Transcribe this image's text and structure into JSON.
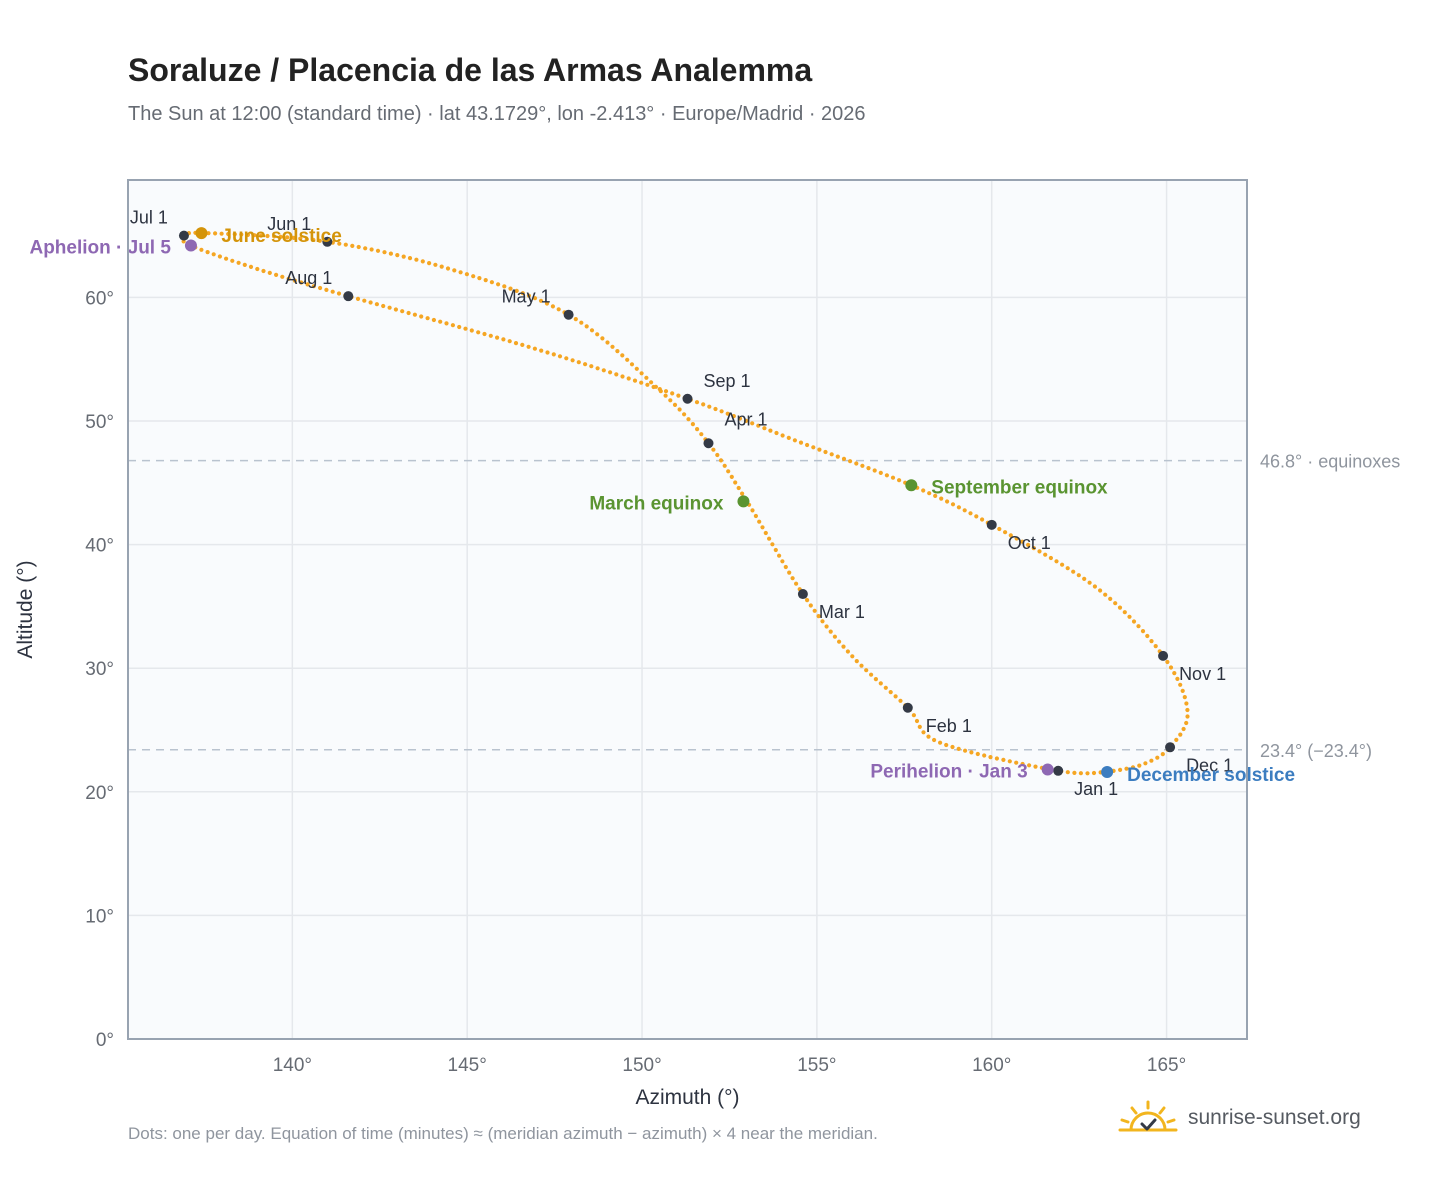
{
  "header": {
    "title": "Soraluze / Placencia de las Armas Analemma",
    "subtitle": "The Sun at 12:00 (standard time) · lat 43.1729°, lon -2.413° · Europe/Madrid · 2026"
  },
  "footer": {
    "note": "Dots: one per day. Equation of time (minutes) ≈ (meridian azimuth − azimuth) × 4 near the meridian.",
    "brand": "sunrise-sunset.org",
    "brand_icon": "sun-icon"
  },
  "colors": {
    "curve": "#f5a623",
    "month_marker": "#343a46",
    "equinox": "#5a9431",
    "june_solstice": "#d4940a",
    "december_solstice": "#3c7dc0",
    "apsis": "#8e68b3",
    "grid": "#e5e8ec",
    "plot_bg": "#f9fbfd",
    "frame": "#98a3b1",
    "ref_line": "#b9c3cf"
  },
  "chart_data": {
    "type": "scatter",
    "xlabel": "Azimuth (°)",
    "ylabel": "Altitude (°)",
    "xlim": [
      135.3,
      167.3
    ],
    "ylim": [
      0,
      69.5
    ],
    "xticks": [
      140,
      145,
      150,
      155,
      160,
      165
    ],
    "yticks": [
      0,
      10,
      20,
      30,
      40,
      50,
      60
    ],
    "xtick_labels": [
      "140°",
      "145°",
      "150°",
      "155°",
      "160°",
      "165°"
    ],
    "ytick_labels": [
      "0°",
      "10°",
      "20°",
      "30°",
      "40°",
      "50°",
      "60°"
    ],
    "grid": true,
    "reference_lines": [
      {
        "y": 46.8,
        "label": "46.8° · equinoxes"
      },
      {
        "y": 23.4,
        "label": "23.4° (−23.4°)"
      }
    ],
    "curve_anchors": [
      {
        "az": 163.3,
        "alt": 21.6
      },
      {
        "az": 161.9,
        "alt": 21.7
      },
      {
        "az": 158.5,
        "alt": 24.0
      },
      {
        "az": 157.6,
        "alt": 26.8
      },
      {
        "az": 156.0,
        "alt": 31.0
      },
      {
        "az": 154.6,
        "alt": 36.0
      },
      {
        "az": 153.0,
        "alt": 43.5
      },
      {
        "az": 151.9,
        "alt": 48.2
      },
      {
        "az": 150.5,
        "alt": 52.5
      },
      {
        "az": 147.9,
        "alt": 58.6
      },
      {
        "az": 144.5,
        "alt": 62.3
      },
      {
        "az": 141.0,
        "alt": 64.5
      },
      {
        "az": 137.6,
        "alt": 65.2
      },
      {
        "az": 136.9,
        "alt": 65.0
      },
      {
        "az": 137.1,
        "alt": 64.2
      },
      {
        "az": 139.0,
        "alt": 62.3
      },
      {
        "az": 141.6,
        "alt": 60.1
      },
      {
        "az": 147.0,
        "alt": 55.8
      },
      {
        "az": 151.3,
        "alt": 51.8
      },
      {
        "az": 154.5,
        "alt": 48.3
      },
      {
        "az": 157.7,
        "alt": 44.8
      },
      {
        "az": 160.0,
        "alt": 41.6
      },
      {
        "az": 163.0,
        "alt": 36.5
      },
      {
        "az": 164.9,
        "alt": 31.0
      },
      {
        "az": 165.6,
        "alt": 26.5
      },
      {
        "az": 165.1,
        "alt": 23.6
      },
      {
        "az": 164.3,
        "alt": 22.2
      },
      {
        "az": 163.3,
        "alt": 21.6
      }
    ],
    "month_markers": [
      {
        "label": "Jan 1",
        "az": 161.9,
        "alt": 21.7
      },
      {
        "label": "Feb 1",
        "az": 157.6,
        "alt": 26.8
      },
      {
        "label": "Mar 1",
        "az": 154.6,
        "alt": 36.0
      },
      {
        "label": "Apr 1",
        "az": 151.9,
        "alt": 48.2
      },
      {
        "label": "May 1",
        "az": 147.9,
        "alt": 58.6
      },
      {
        "label": "Jun 1",
        "az": 141.0,
        "alt": 64.5
      },
      {
        "label": "Jul 1",
        "az": 136.9,
        "alt": 65.0
      },
      {
        "label": "Aug 1",
        "az": 141.6,
        "alt": 60.1
      },
      {
        "label": "Sep 1",
        "az": 151.3,
        "alt": 51.8
      },
      {
        "label": "Oct 1",
        "az": 160.0,
        "alt": 41.6
      },
      {
        "label": "Nov 1",
        "az": 164.9,
        "alt": 31.0
      },
      {
        "label": "Dec 1",
        "az": 165.1,
        "alt": 23.6
      }
    ],
    "special_points": [
      {
        "label": "March equinox",
        "az": 152.9,
        "alt": 43.5,
        "kind": "equinox"
      },
      {
        "label": "September equinox",
        "az": 157.7,
        "alt": 44.8,
        "kind": "equinox"
      },
      {
        "label": "June solstice",
        "az": 137.4,
        "alt": 65.2,
        "kind": "june_solstice"
      },
      {
        "label": "December solstice",
        "az": 163.3,
        "alt": 21.6,
        "kind": "december_solstice"
      },
      {
        "label": "Aphelion · Jul 5",
        "az": 137.1,
        "alt": 64.2,
        "kind": "apsis"
      },
      {
        "label": "Perihelion · Jan 3",
        "az": 161.6,
        "alt": 21.8,
        "kind": "apsis"
      }
    ]
  }
}
